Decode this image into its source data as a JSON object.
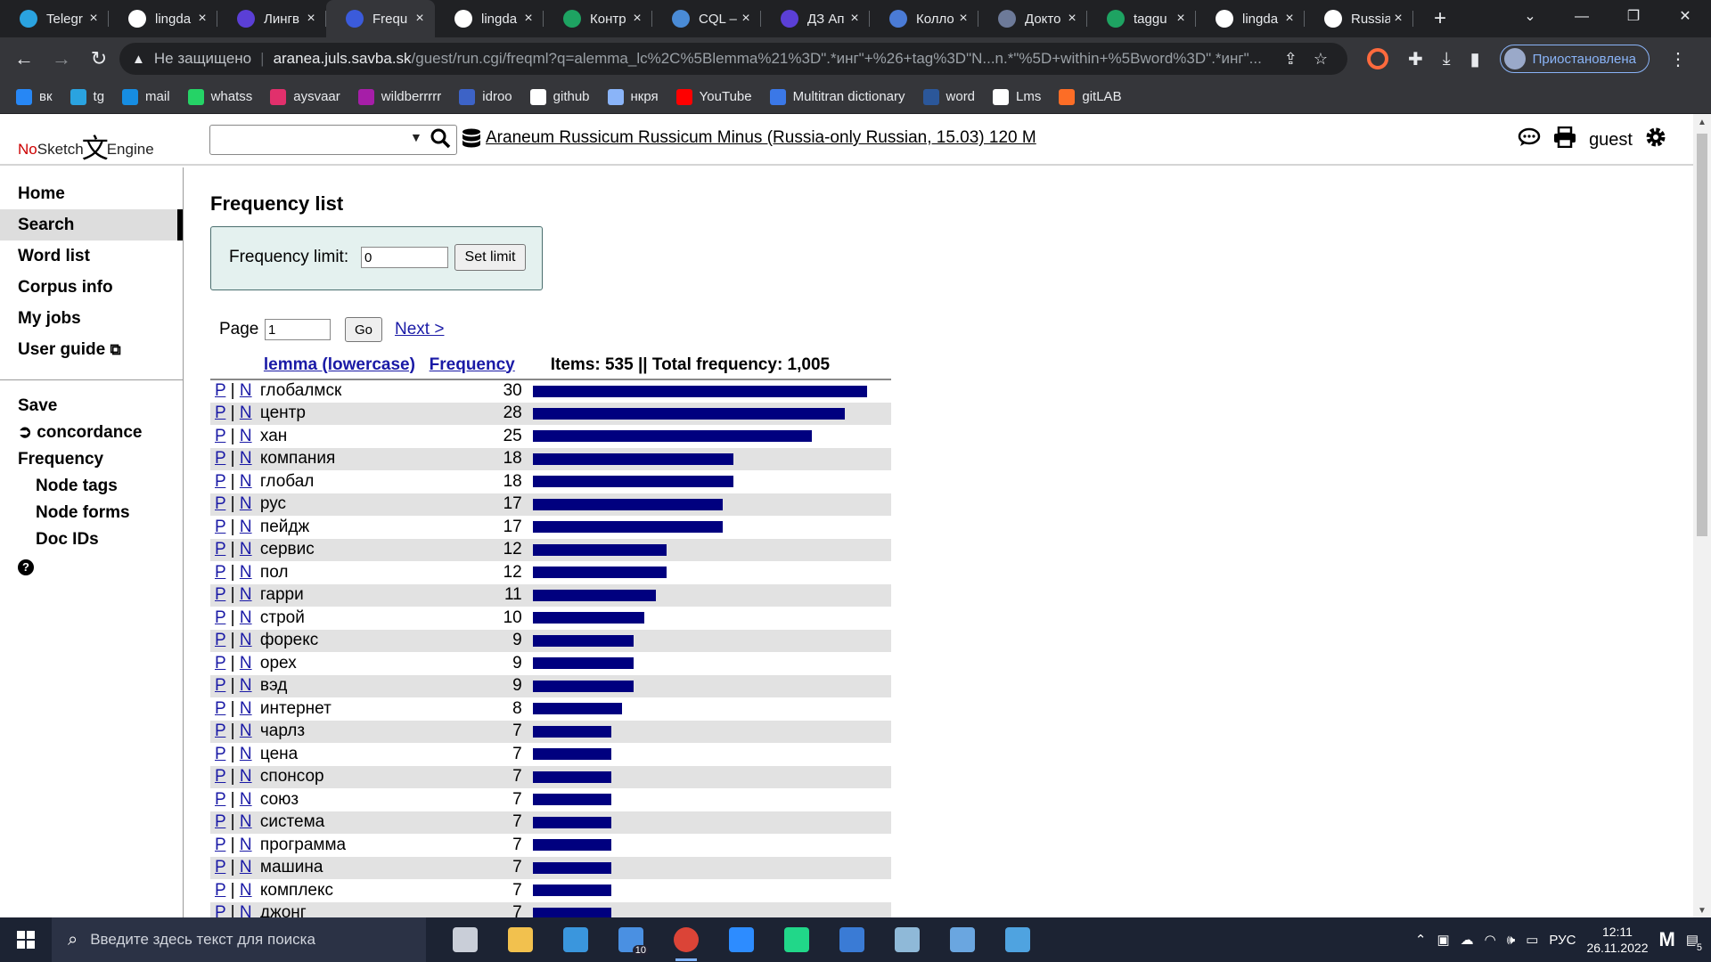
{
  "browser": {
    "tabs": [
      {
        "title": "Telegr",
        "color": "#2aa3e0"
      },
      {
        "title": "lingda",
        "color": "#ffffff"
      },
      {
        "title": "Лингв",
        "color": "#5b3fd6"
      },
      {
        "title": "Frequ",
        "color": "#3b5bdb",
        "active": true
      },
      {
        "title": "lingda",
        "color": "#ffffff"
      },
      {
        "title": "Контр",
        "color": "#1ea362"
      },
      {
        "title": "CQL –",
        "color": "#4a8bd6"
      },
      {
        "title": "ДЗ Ап",
        "color": "#5b3fd6"
      },
      {
        "title": "Колло",
        "color": "#4a7bd6"
      },
      {
        "title": "Докто",
        "color": "#6d7a99"
      },
      {
        "title": "taggu",
        "color": "#1ea362"
      },
      {
        "title": "lingda",
        "color": "#ffffff"
      },
      {
        "title": "Russia",
        "color": "#ffffff"
      }
    ],
    "new_tab": "+",
    "close_glyph": "×",
    "address": {
      "security_label": "Не защищено",
      "host": "aranea.juls.savba.sk",
      "path": "/guest/run.cgi/freqml?q=alemma_lc%2C%5Blemma%21%3D\".*инг\"+%26+tag%3D\"N...n.*\"%5D+within+%5Bword%3D\".*инг\"..."
    },
    "profile_label": "Приостановлена",
    "bookmarks": [
      {
        "label": "вк",
        "color": "#2787f5"
      },
      {
        "label": "tg",
        "color": "#2aa3e0"
      },
      {
        "label": "mail",
        "color": "#168de2"
      },
      {
        "label": "whatss",
        "color": "#25d366"
      },
      {
        "label": "aysvaar",
        "color": "#e1306c"
      },
      {
        "label": "wildberrrrr",
        "color": "#a61ea8"
      },
      {
        "label": "idroo",
        "color": "#3d63c7"
      },
      {
        "label": "github",
        "color": "#ffffff"
      },
      {
        "label": "нкря",
        "color": "#8ab4f8"
      },
      {
        "label": "YouTube",
        "color": "#ff0000"
      },
      {
        "label": "Multitran dictionary",
        "color": "#3b78e7"
      },
      {
        "label": "word",
        "color": "#2b579a"
      },
      {
        "label": "Lms",
        "color": "#ffffff"
      },
      {
        "label": "gitLAB",
        "color": "#fc6d26"
      }
    ]
  },
  "app": {
    "logo_no": "No",
    "logo_sketch": "Sketch",
    "logo_engine": "Engine",
    "corpus_name": "Araneum Russicum Russicum Minus (Russia-only Russian, 15.03) 120 M",
    "user_label": "guest"
  },
  "sidebar": {
    "primary": [
      "Home",
      "Search",
      "Word list",
      "Corpus info",
      "My jobs",
      "User guide"
    ],
    "secondary": {
      "save": "Save",
      "concordance": "concordance",
      "frequency": "Frequency",
      "sub": [
        "Node tags",
        "Node forms",
        "Doc IDs"
      ]
    }
  },
  "main": {
    "title": "Frequency list",
    "freq_limit_label": "Frequency limit:",
    "freq_limit_value": "0",
    "set_limit_label": "Set limit",
    "page_label": "Page",
    "page_value": "1",
    "go_label": "Go",
    "next_label": "Next >",
    "col_lemma": "lemma (lowercase)",
    "col_freq": "Frequency",
    "summary": "Items: 535 || Total frequency: 1,005",
    "p_label": "P",
    "n_label": "N",
    "max_freq": 30
  },
  "rows": [
    {
      "lemma": "глобалмск",
      "freq": 30
    },
    {
      "lemma": "центр",
      "freq": 28
    },
    {
      "lemma": "хан",
      "freq": 25
    },
    {
      "lemma": "компания",
      "freq": 18
    },
    {
      "lemma": "глобал",
      "freq": 18
    },
    {
      "lemma": "рус",
      "freq": 17
    },
    {
      "lemma": "пейдж",
      "freq": 17
    },
    {
      "lemma": "сервис",
      "freq": 12
    },
    {
      "lemma": "пол",
      "freq": 12
    },
    {
      "lemma": "гарри",
      "freq": 11
    },
    {
      "lemma": "строй",
      "freq": 10
    },
    {
      "lemma": "форекс",
      "freq": 9
    },
    {
      "lemma": "орех",
      "freq": 9
    },
    {
      "lemma": "вэд",
      "freq": 9
    },
    {
      "lemma": "интернет",
      "freq": 8
    },
    {
      "lemma": "чарлз",
      "freq": 7
    },
    {
      "lemma": "цена",
      "freq": 7
    },
    {
      "lemma": "спонсор",
      "freq": 7
    },
    {
      "lemma": "союз",
      "freq": 7
    },
    {
      "lemma": "система",
      "freq": 7
    },
    {
      "lemma": "программа",
      "freq": 7
    },
    {
      "lemma": "машина",
      "freq": 7
    },
    {
      "lemma": "комплекс",
      "freq": 7
    },
    {
      "lemma": "джонг",
      "freq": 7
    }
  ],
  "taskbar": {
    "search_placeholder": "Введите здесь текст для поиска",
    "mail_badge": "10",
    "lang": "РУС",
    "time": "12:11",
    "date": "26.11.2022",
    "notif_count": "5",
    "apps": [
      {
        "name": "task-view",
        "color": "#c9ced8"
      },
      {
        "name": "file-explorer",
        "color": "#f2c14e"
      },
      {
        "name": "store",
        "color": "#3a96dd"
      },
      {
        "name": "mail",
        "color": "#4a90e2"
      },
      {
        "name": "chrome",
        "color": "#db4437",
        "active": true
      },
      {
        "name": "zoom",
        "color": "#2d8cff"
      },
      {
        "name": "pycharm",
        "color": "#21d789"
      },
      {
        "name": "defender",
        "color": "#3a7bd5"
      },
      {
        "name": "notes",
        "color": "#8fb9d8"
      },
      {
        "name": "vpn",
        "color": "#6aa6e0"
      },
      {
        "name": "photos",
        "color": "#4fa3e0"
      }
    ]
  }
}
